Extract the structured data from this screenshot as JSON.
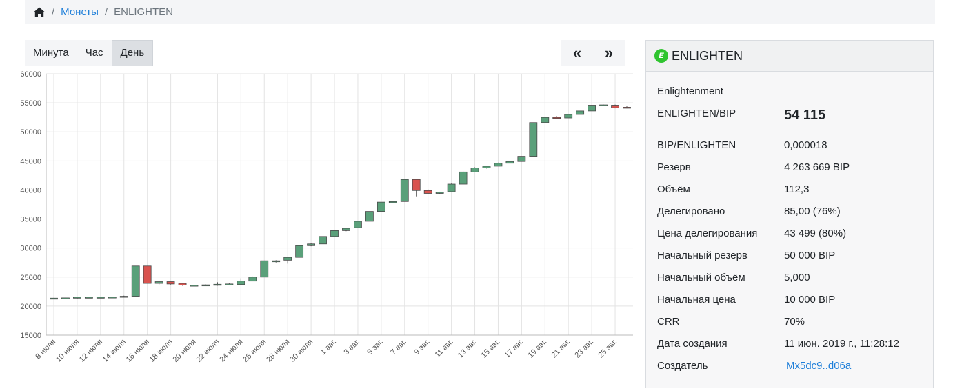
{
  "breadcrumb": {
    "home_icon": "home-icon",
    "coins_label": "Монеты",
    "current": "ENLIGHTEN"
  },
  "period_buttons": {
    "minute": "Минута",
    "hour": "Час",
    "day": "День",
    "active": "День"
  },
  "nav_buttons": {
    "prev": "«",
    "next": "»"
  },
  "coin": {
    "symbol": "ENLIGHTEN",
    "icon_letter": "E",
    "icon_color": "#2fc42f",
    "name": "Enlightenment",
    "rows": [
      {
        "label": "ENLIGHTEN/BIP",
        "value": "54 115"
      },
      {
        "label": "BIP/ENLIGHTEN",
        "value": "0,000018"
      },
      {
        "label": "Резерв",
        "value": "4 263 669 BIP"
      },
      {
        "label": "Объём",
        "value": "112,3"
      },
      {
        "label": "Делегировано",
        "value": "85,00 (76%)"
      },
      {
        "label": "Цена делегирования",
        "value": "43 499 (80%)"
      },
      {
        "label": "Начальный резерв",
        "value": "50 000 BIP"
      },
      {
        "label": "Начальный объём",
        "value": "5,000"
      },
      {
        "label": "Начальная цена",
        "value": "10 000 BIP"
      },
      {
        "label": "CRR",
        "value": "70%"
      },
      {
        "label": "Дата создания",
        "value": "11 июн. 2019 г., 11:28:12"
      },
      {
        "label": "Создатель",
        "value": "Mx5dc9..d06a"
      }
    ]
  },
  "colors": {
    "up": "#5aa07a",
    "down": "#d9534f",
    "link": "#1f7fd9"
  },
  "chart_data": {
    "type": "candlestick",
    "ylim": [
      15000,
      60000
    ],
    "yticks": [
      15000,
      20000,
      25000,
      30000,
      35000,
      40000,
      45000,
      50000,
      55000,
      60000
    ],
    "grid": true,
    "xtick_labels": [
      "8 июля",
      "10 июля",
      "12 июля",
      "14 июля",
      "16 июля",
      "18 июля",
      "20 июля",
      "22 июля",
      "24 июля",
      "26 июля",
      "28 июля",
      "30 июля",
      "1 авг.",
      "3 авг.",
      "5 авг.",
      "7 авг.",
      "9 авг.",
      "11 авг.",
      "13 авг.",
      "15 авг.",
      "17 авг.",
      "19 авг.",
      "21 авг.",
      "23 авг.",
      "25 авг."
    ],
    "candles": [
      {
        "date": "8 июля",
        "o": 21350,
        "h": 21420,
        "l": 21300,
        "c": 21380
      },
      {
        "date": "9 июля",
        "o": 21380,
        "h": 21450,
        "l": 21320,
        "c": 21420
      },
      {
        "date": "10 июля",
        "o": 21400,
        "h": 21600,
        "l": 21300,
        "c": 21550
      },
      {
        "date": "11 июля",
        "o": 21550,
        "h": 21600,
        "l": 21500,
        "c": 21550
      },
      {
        "date": "12 июля",
        "o": 21550,
        "h": 21600,
        "l": 21500,
        "c": 21550
      },
      {
        "date": "13 июля",
        "o": 21550,
        "h": 21620,
        "l": 21500,
        "c": 21580
      },
      {
        "date": "14 июля",
        "o": 21550,
        "h": 21800,
        "l": 21500,
        "c": 21700
      },
      {
        "date": "15 июля",
        "o": 21700,
        "h": 26900,
        "l": 21700,
        "c": 26900
      },
      {
        "date": "16 июля",
        "o": 26900,
        "h": 26900,
        "l": 23900,
        "c": 23900
      },
      {
        "date": "17 июля",
        "o": 23900,
        "h": 24300,
        "l": 23700,
        "c": 24200
      },
      {
        "date": "18 июля",
        "o": 24200,
        "h": 24200,
        "l": 23700,
        "c": 23800
      },
      {
        "date": "19 июля",
        "o": 23900,
        "h": 23900,
        "l": 23500,
        "c": 23600
      },
      {
        "date": "20 июля",
        "o": 23550,
        "h": 23650,
        "l": 23450,
        "c": 23600
      },
      {
        "date": "21 июля",
        "o": 23600,
        "h": 23700,
        "l": 23500,
        "c": 23650
      },
      {
        "date": "22 июля",
        "o": 23600,
        "h": 24100,
        "l": 23500,
        "c": 23750
      },
      {
        "date": "23 июля",
        "o": 23700,
        "h": 23900,
        "l": 23600,
        "c": 23800
      },
      {
        "date": "24 июля",
        "o": 23700,
        "h": 24800,
        "l": 23600,
        "c": 24300
      },
      {
        "date": "25 июля",
        "o": 24300,
        "h": 25100,
        "l": 24300,
        "c": 25000
      },
      {
        "date": "26 июля",
        "o": 25000,
        "h": 27800,
        "l": 25000,
        "c": 27800
      },
      {
        "date": "27 июля",
        "o": 27700,
        "h": 27900,
        "l": 27500,
        "c": 27800
      },
      {
        "date": "28 июля",
        "o": 27900,
        "h": 28500,
        "l": 27300,
        "c": 28400
      },
      {
        "date": "29 июля",
        "o": 28400,
        "h": 30500,
        "l": 28400,
        "c": 30400
      },
      {
        "date": "30 июля",
        "o": 30400,
        "h": 30800,
        "l": 30300,
        "c": 30700
      },
      {
        "date": "31 июля",
        "o": 30700,
        "h": 32000,
        "l": 30700,
        "c": 32000
      },
      {
        "date": "1 авг.",
        "o": 32000,
        "h": 33100,
        "l": 32000,
        "c": 33000
      },
      {
        "date": "2 авг.",
        "o": 33000,
        "h": 33500,
        "l": 32900,
        "c": 33400
      },
      {
        "date": "3 авг.",
        "o": 33500,
        "h": 34700,
        "l": 33500,
        "c": 34600
      },
      {
        "date": "4 авг.",
        "o": 34600,
        "h": 36300,
        "l": 34600,
        "c": 36300
      },
      {
        "date": "5 авг.",
        "o": 36300,
        "h": 37900,
        "l": 36300,
        "c": 37900
      },
      {
        "date": "6 авг.",
        "o": 37800,
        "h": 38100,
        "l": 37700,
        "c": 38000
      },
      {
        "date": "7 авг.",
        "o": 38000,
        "h": 41800,
        "l": 38000,
        "c": 41800
      },
      {
        "date": "8 авг.",
        "o": 41800,
        "h": 41800,
        "l": 38900,
        "c": 39900
      },
      {
        "date": "9 авг.",
        "o": 39900,
        "h": 40100,
        "l": 39300,
        "c": 39400
      },
      {
        "date": "10 авг.",
        "o": 39400,
        "h": 39700,
        "l": 39300,
        "c": 39600
      },
      {
        "date": "11 авг.",
        "o": 39700,
        "h": 41100,
        "l": 39700,
        "c": 41000
      },
      {
        "date": "12 авг.",
        "o": 41000,
        "h": 43200,
        "l": 41000,
        "c": 43100
      },
      {
        "date": "13 авг.",
        "o": 43100,
        "h": 43900,
        "l": 43100,
        "c": 43800
      },
      {
        "date": "14 авг.",
        "o": 43800,
        "h": 44200,
        "l": 43700,
        "c": 44100
      },
      {
        "date": "15 авг.",
        "o": 44100,
        "h": 44700,
        "l": 44100,
        "c": 44600
      },
      {
        "date": "16 авг.",
        "o": 44600,
        "h": 44900,
        "l": 44600,
        "c": 44900
      },
      {
        "date": "17 авг.",
        "o": 44900,
        "h": 45800,
        "l": 44900,
        "c": 45800
      },
      {
        "date": "18 авг.",
        "o": 45800,
        "h": 51600,
        "l": 45800,
        "c": 51600
      },
      {
        "date": "19 авг.",
        "o": 51600,
        "h": 52600,
        "l": 51600,
        "c": 52500
      },
      {
        "date": "20 авг.",
        "o": 52500,
        "h": 52700,
        "l": 52300,
        "c": 52400
      },
      {
        "date": "21 авг.",
        "o": 52400,
        "h": 53100,
        "l": 52400,
        "c": 53000
      },
      {
        "date": "22 авг.",
        "o": 53000,
        "h": 53600,
        "l": 53000,
        "c": 53600
      },
      {
        "date": "23 авг.",
        "o": 53600,
        "h": 54600,
        "l": 53600,
        "c": 54600
      },
      {
        "date": "24 авг.",
        "o": 54600,
        "h": 54700,
        "l": 54500,
        "c": 54650
      },
      {
        "date": "25 авг.",
        "o": 54600,
        "h": 54700,
        "l": 54050,
        "c": 54150
      },
      {
        "date": "26 авг.",
        "o": 54250,
        "h": 54400,
        "l": 54050,
        "c": 54115
      }
    ]
  }
}
